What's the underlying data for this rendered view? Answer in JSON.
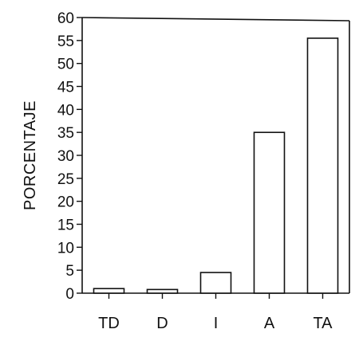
{
  "chart_data": {
    "type": "bar",
    "categories": [
      "TD",
      "D",
      "I",
      "A",
      "TA"
    ],
    "values": [
      1,
      0.8,
      4.5,
      35,
      55.5
    ],
    "title": "",
    "xlabel": "",
    "ylabel": "PORCENTAJE",
    "ylim": [
      0,
      60
    ],
    "yticks": [
      0,
      5,
      10,
      15,
      20,
      25,
      30,
      35,
      40,
      45,
      50,
      55,
      60
    ],
    "grid": false,
    "legend": "none",
    "bar_color": "#ffffff",
    "edge_color": "#111111"
  }
}
